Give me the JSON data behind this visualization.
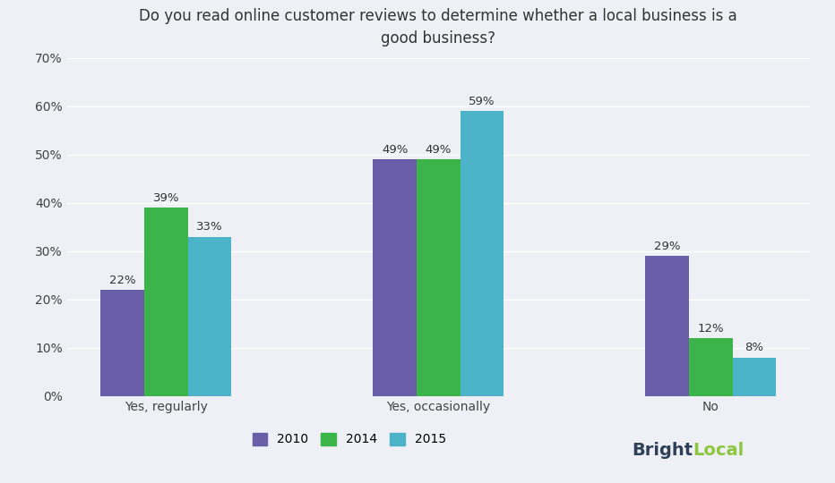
{
  "title": "Do you read online customer reviews to determine whether a local business is a\ngood business?",
  "categories": [
    "Yes, regularly",
    "Yes, occasionally",
    "No"
  ],
  "years": [
    "2010",
    "2014",
    "2015"
  ],
  "values": {
    "2010": [
      22,
      49,
      29
    ],
    "2014": [
      39,
      49,
      12
    ],
    "2015": [
      33,
      59,
      8
    ]
  },
  "colors": {
    "2010": "#6b5ea8",
    "2014": "#3bb54a",
    "2015": "#4db3c8"
  },
  "ylim": [
    0,
    70
  ],
  "yticks": [
    0,
    10,
    20,
    30,
    40,
    50,
    60,
    70
  ],
  "ytick_labels": [
    "0%",
    "10%",
    "20%",
    "30%",
    "40%",
    "50%",
    "60%",
    "70%"
  ],
  "background_color": "#eef0f5",
  "title_fontsize": 12,
  "bar_width": 0.16,
  "label_fontsize": 9.5,
  "tick_fontsize": 10,
  "legend_fontsize": 10,
  "brightlocal_color_bright": "#8dc63f",
  "brightlocal_color_dark": "#2e4057"
}
